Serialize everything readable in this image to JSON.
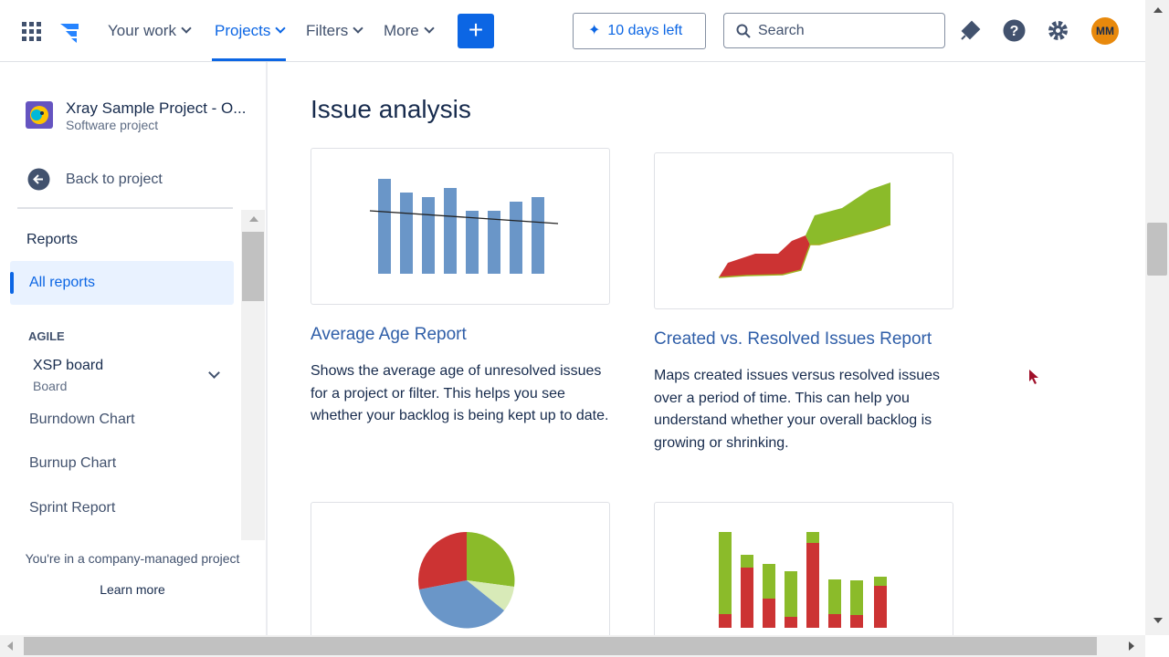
{
  "nav": {
    "items": [
      "Your work",
      "Projects",
      "Filters",
      "More"
    ],
    "trial": "10 days left",
    "search": "Search",
    "avatar": "MM"
  },
  "sidebar": {
    "project_name": "Xray Sample Project - O...",
    "project_type": "Software project",
    "back": "Back to project",
    "section": "Reports",
    "active": "All reports",
    "group": "AGILE",
    "board_name": "XSP board",
    "board_type": "Board",
    "links": [
      "Burndown Chart",
      "Burnup Chart",
      "Sprint Report"
    ],
    "footer": "You're in a company-managed project",
    "learn_more": "Learn more"
  },
  "main": {
    "heading": "Issue analysis",
    "reports": [
      {
        "title": "Average Age Report",
        "description": "Shows the average age of unresolved issues for a project or filter. This helps you see whether your backlog is being kept up to date."
      },
      {
        "title": "Created vs. Resolved Issues Report",
        "description": "Maps created issues versus resolved issues over a period of time. This can help you understand whether your overall backlog is growing or shrinking."
      }
    ]
  }
}
